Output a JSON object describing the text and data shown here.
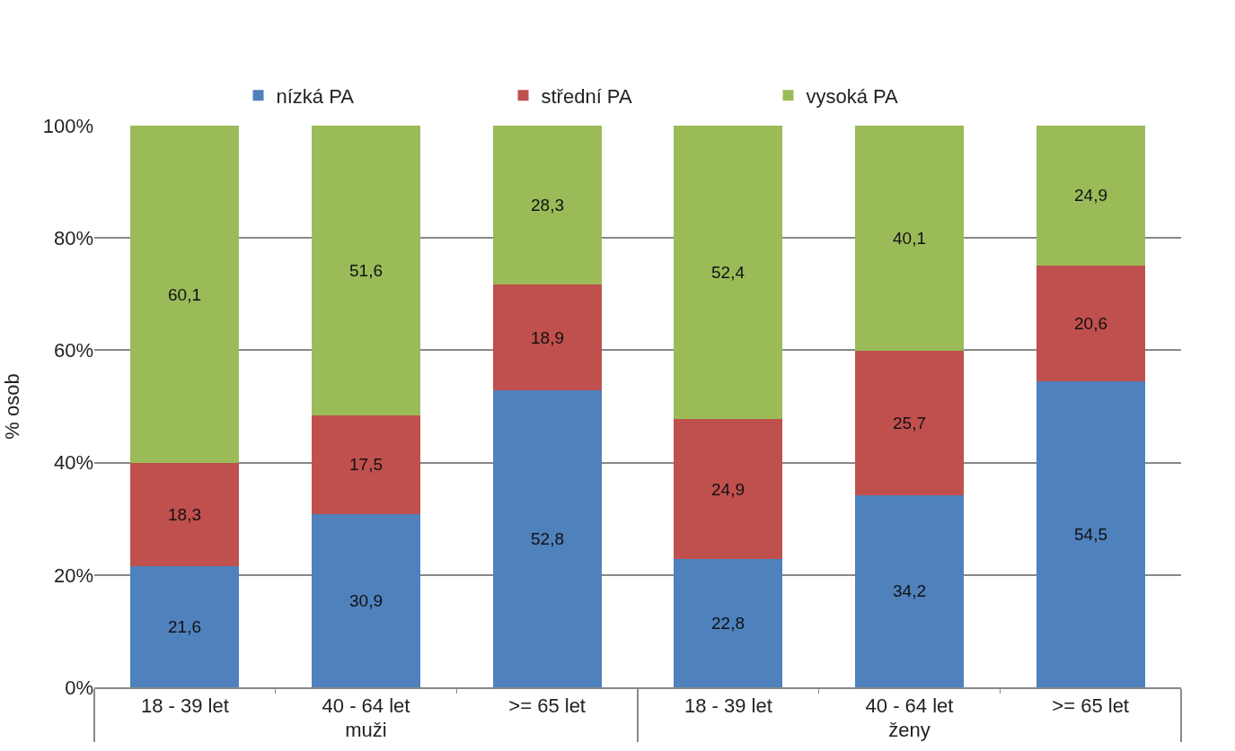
{
  "chart_data": {
    "type": "bar",
    "stacked": true,
    "ylabel": "% osob",
    "categories": [
      "18 - 39 let",
      "40 - 64 let",
      ">= 65 let",
      "18 - 39 let",
      "40 - 64 let",
      ">= 65 let"
    ],
    "annotations": [
      "muži",
      "ženy"
    ],
    "series": [
      {
        "name": "nízká PA",
        "color": "#4f81bd",
        "values": [
          21.6,
          30.9,
          52.8,
          22.8,
          34.2,
          54.5
        ],
        "value_labels": [
          "21,6",
          "30,9",
          "52,8",
          "22,8",
          "34,2",
          "54,5"
        ]
      },
      {
        "name": "střední PA",
        "color": "#c0504d",
        "values": [
          18.3,
          17.5,
          18.9,
          24.9,
          25.7,
          20.6
        ],
        "value_labels": [
          "18,3",
          "17,5",
          "18,9",
          "24,9",
          "25,7",
          "20,6"
        ]
      },
      {
        "name": "vysoká PA",
        "color": "#9bbb59",
        "values": [
          60.1,
          51.6,
          28.3,
          52.4,
          40.1,
          24.9
        ],
        "value_labels": [
          "60,1",
          "51,6",
          "28,3",
          "52,4",
          "40,1",
          "24,9"
        ]
      }
    ],
    "ylim": [
      0,
      100
    ],
    "yticks": [
      {
        "value": 0,
        "label": "0%"
      },
      {
        "value": 20,
        "label": "20%"
      },
      {
        "value": 40,
        "label": "40%"
      },
      {
        "value": 60,
        "label": "60%"
      },
      {
        "value": 80,
        "label": "80%"
      },
      {
        "value": 100,
        "label": "100%"
      }
    ],
    "grid": "y",
    "legend": "top"
  }
}
